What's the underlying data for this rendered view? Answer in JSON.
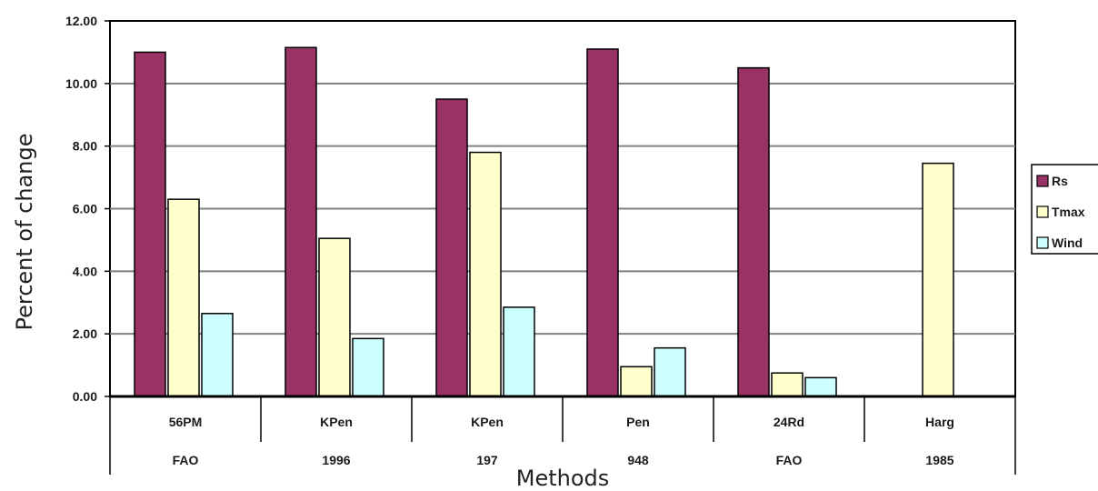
{
  "chart_data": {
    "type": "bar",
    "title": "",
    "ylabel": "Percent of change",
    "xlabel": "Methods",
    "ylim": [
      0,
      12
    ],
    "yticks": [
      "0.00",
      "2.00",
      "4.00",
      "6.00",
      "8.00",
      "10.00",
      "12.00"
    ],
    "categories": [
      {
        "line1": "56PM",
        "line2": "FAO"
      },
      {
        "line1": "KPen",
        "line2": "1996"
      },
      {
        "line1": "KPen",
        "line2": "197"
      },
      {
        "line1": "Pen",
        "line2": "948"
      },
      {
        "line1": "24Rd",
        "line2": "FAO"
      },
      {
        "line1": "Harg",
        "line2": "1985"
      }
    ],
    "series": [
      {
        "name": "Rs",
        "color": "#993366",
        "values": [
          11.0,
          11.15,
          9.5,
          11.1,
          10.5,
          0
        ]
      },
      {
        "name": "Tmax",
        "color": "#FFFFCC",
        "values": [
          6.3,
          5.05,
          7.8,
          0.95,
          0.75,
          7.45
        ]
      },
      {
        "name": "Wind",
        "color": "#CCFFFF",
        "values": [
          2.65,
          1.85,
          2.85,
          1.55,
          0.6,
          0
        ]
      }
    ],
    "grid": true,
    "legend_position": "right"
  }
}
